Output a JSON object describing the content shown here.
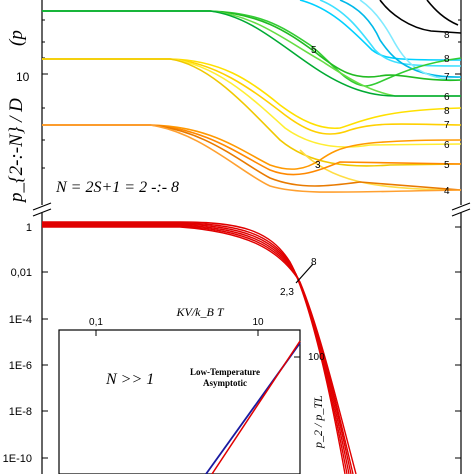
{
  "upper_panel": {
    "ylabel": "p_{2-:-N} / D",
    "formula": "N = 2S+1 = 2 -:- 8",
    "ytick_10": "10",
    "right_labels": [
      "8",
      "8",
      "7",
      "6",
      "8",
      "7",
      "6",
      "5",
      "4"
    ],
    "curve_labels": [
      "5",
      "3"
    ]
  },
  "lower_panel": {
    "yticks": [
      "1",
      "0,01",
      "1E-4",
      "1E-6",
      "1E-8",
      "1E-10"
    ],
    "curve_label_top": "8",
    "curve_label_mid": "2,3"
  },
  "inset": {
    "xlabel": "KV/k_B T",
    "xticks": [
      "0,1",
      "10"
    ],
    "ytick": "100",
    "ylabel": "p_2 / p_TL",
    "text_N": "N >> 1",
    "text_asym": "Low-Temperature Asymptotic"
  },
  "colors": {
    "N8": "#000000",
    "N7": "#00c8ff",
    "N6": "#22cc22",
    "N5": "#ffdd00",
    "N4": "#ff8c00",
    "N2": "#e00000",
    "asymptotic": "#1a1aa0"
  },
  "chart_data": [
    {
      "type": "line",
      "title": "",
      "ylabel": "p_{2-:-N} / D",
      "xlabel": "",
      "series": [
        {
          "name": "8",
          "values": [
            [
              0,
              55
            ],
            [
              1,
              55
            ],
            [
              2,
              50
            ],
            [
              2.6,
              35
            ],
            [
              3,
              22
            ],
            [
              3.5,
              18
            ]
          ]
        },
        {
          "name": "7",
          "values": [
            [
              0,
              28
            ],
            [
              1,
              28
            ],
            [
              1.8,
              27
            ],
            [
              2.4,
              22
            ],
            [
              3,
              15
            ],
            [
              3.5,
              14
            ]
          ]
        },
        {
          "name": "6",
          "values": [
            [
              0,
              12
            ],
            [
              1,
              12
            ],
            [
              1.8,
              11.5
            ],
            [
              2.4,
              9
            ],
            [
              3,
              10.5
            ],
            [
              3.5,
              10.5
            ]
          ]
        },
        {
          "name": "5",
          "values": [
            [
              0,
              4.5
            ],
            [
              1,
              4.5
            ],
            [
              1.8,
              4.2
            ],
            [
              2.4,
              4
            ],
            [
              3,
              5
            ],
            [
              3.5,
              5
            ]
          ]
        },
        {
          "name": "4",
          "values": [
            [
              0,
              2.8
            ],
            [
              1,
              2.8
            ],
            [
              1.8,
              2.4
            ],
            [
              2.4,
              2.8
            ],
            [
              3,
              2.6
            ],
            [
              3.5,
              2.6
            ]
          ]
        }
      ]
    },
    {
      "type": "line",
      "title": "",
      "yticks": [
        "1",
        "0,01",
        "1E-4",
        "1E-6",
        "1E-8",
        "1E-10"
      ],
      "series": [
        {
          "name": "2,3",
          "values": [
            [
              0,
              1
            ],
            [
              1,
              0.95
            ],
            [
              2,
              0.3
            ],
            [
              2.5,
              0.01
            ],
            [
              3,
              1e-06
            ],
            [
              3.3,
              1e-10
            ]
          ]
        },
        {
          "name": "8",
          "values": [
            [
              0,
              1
            ],
            [
              1,
              0.97
            ],
            [
              2,
              0.4
            ],
            [
              2.5,
              0.02
            ],
            [
              3,
              3e-06
            ],
            [
              3.3,
              3e-10
            ]
          ]
        }
      ]
    },
    {
      "type": "line",
      "title": "",
      "xlabel": "KV/k_B T",
      "ylabel": "p_2 / p_TL",
      "xticks": [
        "0,1",
        "10"
      ],
      "series": [
        {
          "name": "Low-Temperature Asymptotic",
          "values": [
            [
              1,
              1
            ],
            [
              100,
              100
            ]
          ]
        },
        {
          "values": [
            [
              1,
              0.6
            ],
            [
              100,
              100
            ]
          ]
        }
      ]
    }
  ]
}
